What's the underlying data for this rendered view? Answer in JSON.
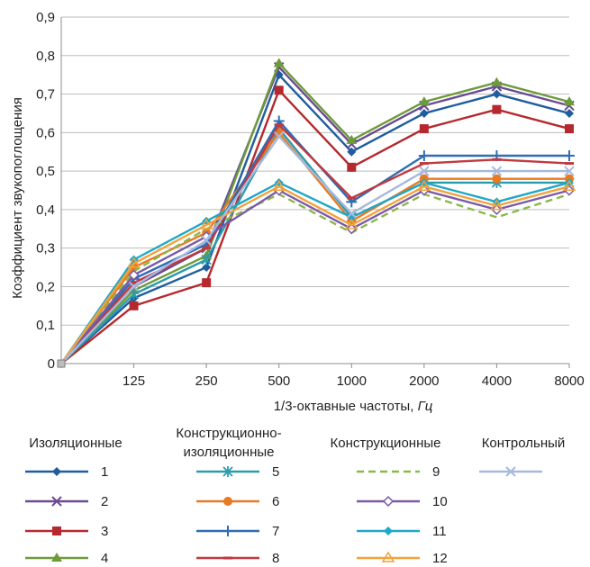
{
  "chart_data": {
    "type": "line",
    "categories": [
      "",
      "125",
      "250",
      "500",
      "1000",
      "2000",
      "4000",
      "8000"
    ],
    "ylabel": "Коэффициент звукопоглощения",
    "xlabel_main": "1/3-октавные частоты, ",
    "xlabel_unit": "Гц",
    "ylim": [
      0,
      0.9
    ],
    "yticks": [
      "0",
      "0,1",
      "0,2",
      "0,3",
      "0,4",
      "0,5",
      "0,6",
      "0,7",
      "0,8",
      "0,9"
    ],
    "grid": "horizontal",
    "series": [
      {
        "name": "1",
        "color": "#1f5d9f",
        "marker": "diamond",
        "dash": false,
        "values": [
          0,
          0.17,
          0.25,
          0.75,
          0.55,
          0.65,
          0.7,
          0.65
        ]
      },
      {
        "name": "2",
        "color": "#6a4c93",
        "marker": "x",
        "dash": false,
        "values": [
          0,
          0.2,
          0.3,
          0.77,
          0.57,
          0.67,
          0.72,
          0.67
        ]
      },
      {
        "name": "3",
        "color": "#b5292e",
        "marker": "square",
        "dash": false,
        "values": [
          0,
          0.15,
          0.21,
          0.71,
          0.51,
          0.61,
          0.66,
          0.61
        ]
      },
      {
        "name": "4",
        "color": "#6e9b3a",
        "marker": "triangle",
        "dash": false,
        "values": [
          0,
          0.19,
          0.28,
          0.78,
          0.58,
          0.68,
          0.73,
          0.68
        ]
      },
      {
        "name": "5",
        "color": "#2e9bab",
        "marker": "asterisk",
        "dash": false,
        "values": [
          0,
          0.18,
          0.27,
          0.61,
          0.38,
          0.47,
          0.47,
          0.47
        ]
      },
      {
        "name": "6",
        "color": "#e87a22",
        "marker": "circle",
        "dash": false,
        "values": [
          0,
          0.25,
          0.34,
          0.6,
          0.37,
          0.48,
          0.48,
          0.48
        ]
      },
      {
        "name": "7",
        "color": "#2e6db4",
        "marker": "plus",
        "dash": false,
        "values": [
          0,
          0.22,
          0.31,
          0.63,
          0.42,
          0.54,
          0.54,
          0.54
        ]
      },
      {
        "name": "8",
        "color": "#c0393f",
        "marker": "dash",
        "dash": false,
        "values": [
          0,
          0.21,
          0.3,
          0.62,
          0.43,
          0.52,
          0.53,
          0.52
        ]
      },
      {
        "name": "9",
        "color": "#8cb84a",
        "marker": "none",
        "dash": true,
        "values": [
          0,
          0.24,
          0.35,
          0.44,
          0.34,
          0.44,
          0.38,
          0.44
        ]
      },
      {
        "name": "10",
        "color": "#7a5aa8",
        "marker": "open-diamond",
        "dash": false,
        "values": [
          0,
          0.23,
          0.33,
          0.45,
          0.35,
          0.45,
          0.4,
          0.45
        ]
      },
      {
        "name": "11",
        "color": "#1fa8c8",
        "marker": "diamond",
        "dash": false,
        "values": [
          0,
          0.27,
          0.37,
          0.47,
          0.38,
          0.47,
          0.42,
          0.47
        ]
      },
      {
        "name": "12",
        "color": "#f2a23c",
        "marker": "open-triangle",
        "dash": false,
        "values": [
          0,
          0.26,
          0.36,
          0.46,
          0.36,
          0.46,
          0.41,
          0.46
        ]
      },
      {
        "name": "",
        "color": "#a6b9dc",
        "marker": "x",
        "dash": false,
        "values": [
          0,
          0.2,
          0.32,
          0.59,
          0.39,
          0.5,
          0.5,
          0.5
        ]
      }
    ],
    "legend_groups": [
      {
        "title": "Изоляционные",
        "series": [
          "1",
          "2",
          "3",
          "4"
        ]
      },
      {
        "title": "Конструкционно-изоляционные",
        "series": [
          "5",
          "6",
          "7",
          "8"
        ]
      },
      {
        "title": "Конструкционные",
        "series": [
          "9",
          "10",
          "11",
          "12"
        ]
      },
      {
        "title": "Контрольный",
        "series": [
          ""
        ]
      }
    ]
  },
  "legend_titles": {
    "insulating": "Изоляционные",
    "struct_insulating_1": "Конструкционно-",
    "struct_insulating_2": "изоляционные",
    "structural": "Конструкционные",
    "control": "Контрольный"
  }
}
